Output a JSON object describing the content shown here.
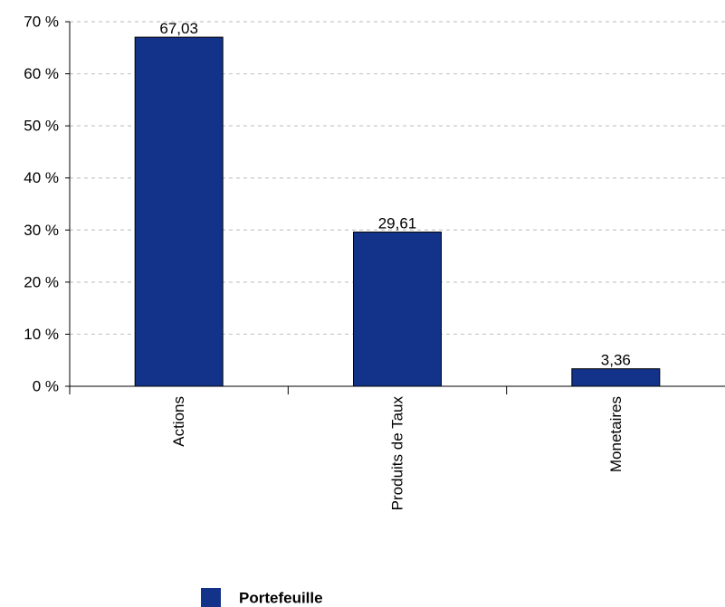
{
  "chart_data": {
    "type": "bar",
    "categories": [
      "Actions",
      "Produits de Taux",
      "Monetaires"
    ],
    "series": [
      {
        "name": "Portefeuille",
        "values": [
          67.03,
          29.61,
          3.36
        ],
        "labels": [
          "67,03",
          "29,61",
          "3,36"
        ],
        "color": "#13338a"
      }
    ],
    "ylim": [
      0,
      70
    ],
    "yticks": [
      0,
      10,
      20,
      30,
      40,
      50,
      60,
      70
    ],
    "ytick_labels": [
      "0 %",
      "10 %",
      "20 %",
      "30 %",
      "40 %",
      "50 %",
      "60 %",
      "70 %"
    ],
    "grid": true,
    "legend_position": "bottom",
    "title": "",
    "xlabel": "",
    "ylabel": ""
  }
}
